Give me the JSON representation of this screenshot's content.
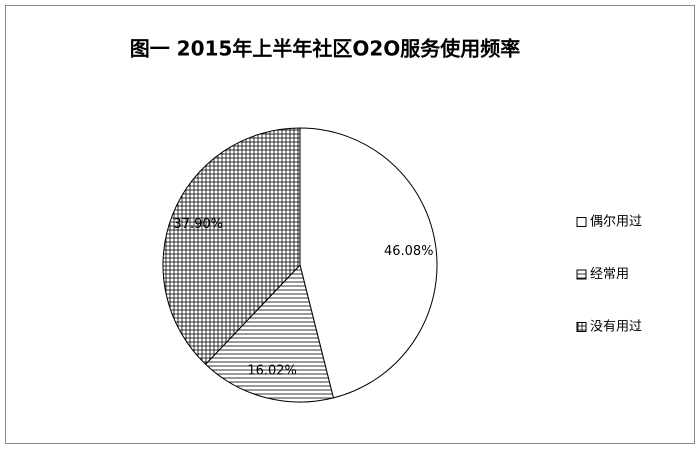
{
  "chart_data": {
    "type": "pie",
    "title": "图一  2015年上半年社区O2O服务使用频率",
    "categories": [
      "偶尔用过",
      "经常用",
      "没有用过"
    ],
    "values": [
      46.08,
      16.02,
      37.9
    ],
    "value_labels": [
      "46.08%",
      "16.02%",
      "37.90%"
    ],
    "patterns": [
      "none",
      "horizontal",
      "grid"
    ],
    "legend": "right"
  }
}
